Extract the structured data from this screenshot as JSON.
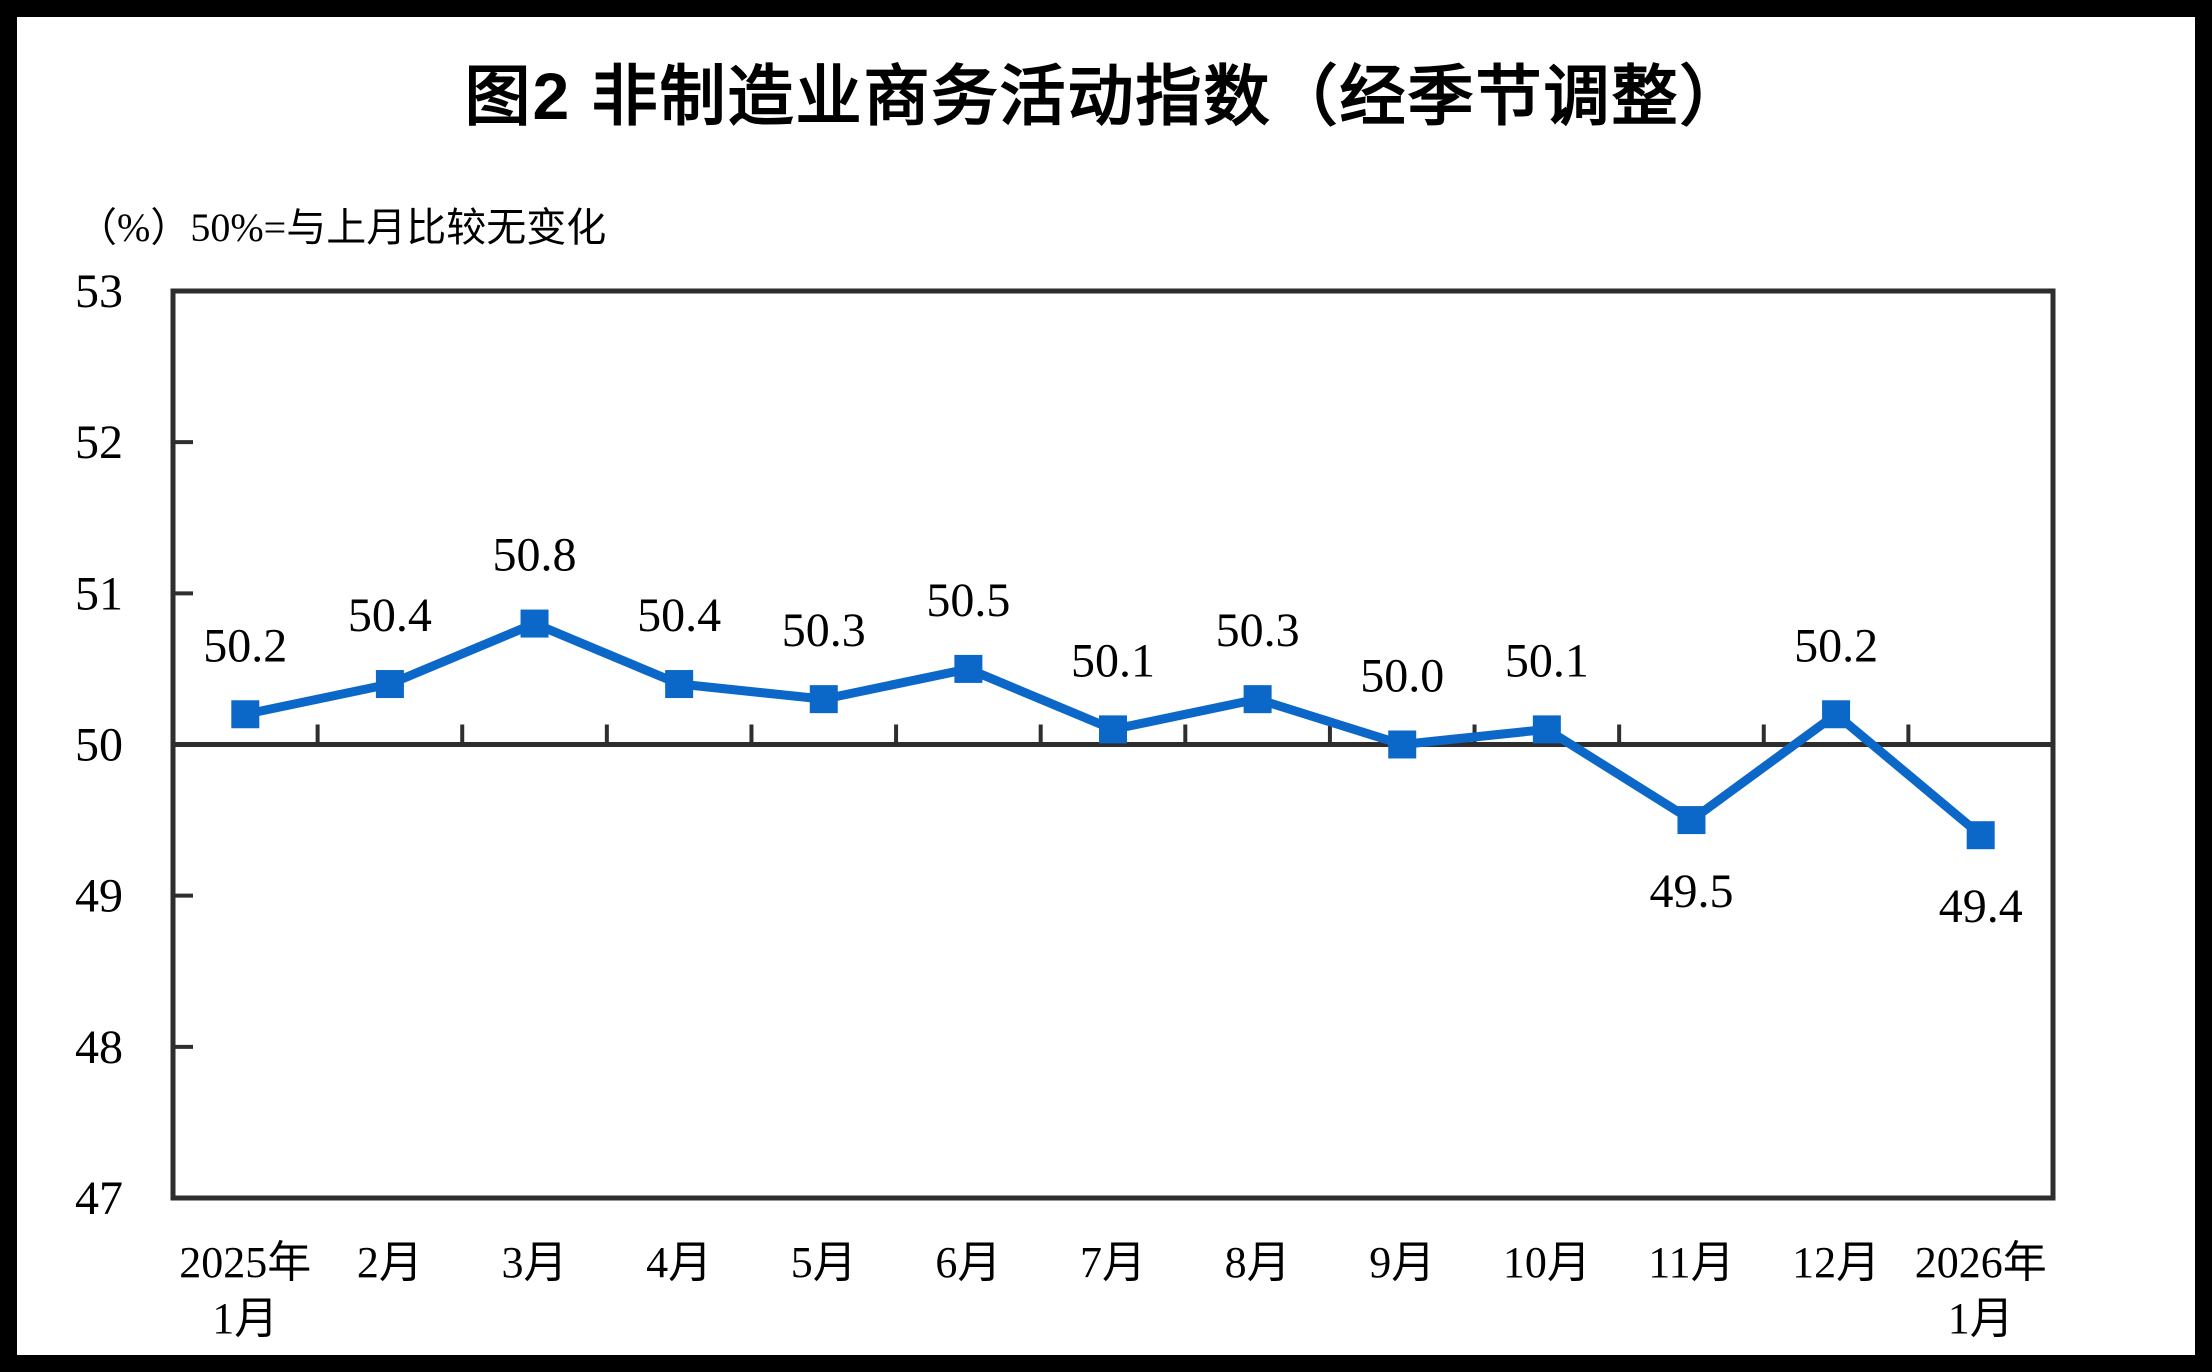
{
  "figure": {
    "title": "图2 非制造业商务活动指数（经季节调整）",
    "unit_note": "（%）50%=与上月比较无变化"
  },
  "colors": {
    "line": "#0C68C8",
    "marker": "#0C68C8",
    "axis": "#2E2E2E",
    "text": "#000000",
    "background": "#FFFFFF",
    "outer_frame": "#000000"
  },
  "chart_data": {
    "type": "line",
    "title": "图2 非制造业商务活动指数（经季节调整）",
    "unit_note": "（%）50%=与上月比较无变化",
    "categories": [
      [
        "2025年",
        "1月"
      ],
      [
        "2月"
      ],
      [
        "3月"
      ],
      [
        "4月"
      ],
      [
        "5月"
      ],
      [
        "6月"
      ],
      [
        "7月"
      ],
      [
        "8月"
      ],
      [
        "9月"
      ],
      [
        "10月"
      ],
      [
        "11月"
      ],
      [
        "12月"
      ],
      [
        "2026年",
        "1月"
      ]
    ],
    "values": [
      50.2,
      50.4,
      50.8,
      50.4,
      50.3,
      50.5,
      50.1,
      50.3,
      50.0,
      50.1,
      49.5,
      50.2,
      49.4
    ],
    "data_labels": [
      "50.2",
      "50.4",
      "50.8",
      "50.4",
      "50.3",
      "50.5",
      "50.1",
      "50.3",
      "50.0",
      "50.1",
      "49.5",
      "50.2",
      "49.4"
    ],
    "label_below_indices": [
      10,
      12
    ],
    "ylim": [
      47,
      53
    ],
    "yticks": [
      47,
      48,
      49,
      50,
      51,
      52,
      53
    ],
    "reference_line": 50,
    "marker": "square",
    "grid": false,
    "legend": false,
    "xlabel": "",
    "ylabel": ""
  }
}
